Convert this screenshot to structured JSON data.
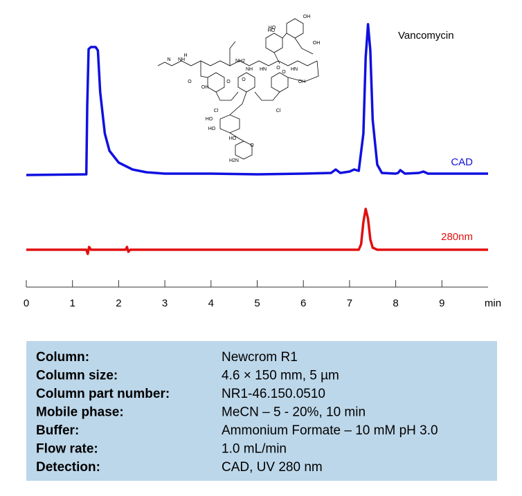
{
  "chart_data": {
    "type": "line",
    "annotations": [
      "Vancomycin"
    ],
    "structure_labels": [
      "OH",
      "HO",
      "OH",
      "HO",
      "O",
      "NH",
      "H",
      "N",
      "O",
      "OH",
      "Cl",
      "NH2",
      "O",
      "HN",
      "O",
      "Cl",
      "OH",
      "HO",
      "HO",
      "O",
      "HO",
      "H2N",
      "O",
      "NH",
      "HN"
    ],
    "x_label": "min",
    "xlim": [
      0,
      10
    ],
    "xticks": [
      0,
      1,
      2,
      3,
      4,
      5,
      6,
      7,
      8,
      9
    ],
    "ylim": [
      0,
      220
    ],
    "series": [
      {
        "name": "CAD",
        "color": "#1010e0",
        "x": [
          0,
          1.3,
          1.32,
          1.35,
          1.4,
          1.5,
          1.55,
          1.6,
          1.7,
          1.8,
          2.0,
          2.3,
          2.6,
          3.0,
          4.0,
          5.0,
          6.0,
          6.6,
          6.7,
          6.8,
          7.0,
          7.1,
          7.2,
          7.3,
          7.35,
          7.4,
          7.45,
          7.5,
          7.6,
          7.7,
          8.0,
          8.05,
          8.1,
          8.2,
          8.5,
          8.6,
          8.7,
          9.0,
          10.0
        ],
        "values": [
          0,
          1,
          100,
          182,
          185,
          185,
          180,
          120,
          60,
          35,
          18,
          8,
          4,
          2,
          2,
          1,
          2,
          3,
          8,
          3,
          5,
          8,
          6,
          60,
          170,
          218,
          180,
          80,
          15,
          3,
          2,
          3,
          7,
          2,
          3,
          5,
          2,
          2,
          2
        ]
      },
      {
        "name": "280nm",
        "color": "#e01010",
        "x": [
          0,
          1.3,
          1.33,
          1.36,
          1.4,
          2.15,
          2.18,
          2.21,
          2.25,
          7.2,
          7.25,
          7.3,
          7.35,
          7.4,
          7.45,
          7.5,
          7.6,
          10.0
        ],
        "values": [
          0,
          0,
          -6,
          4,
          0,
          0,
          4,
          -3,
          0,
          0,
          8,
          40,
          59,
          45,
          15,
          3,
          0,
          0
        ]
      }
    ]
  },
  "conditions": {
    "rows": [
      [
        "Column:",
        "Newcrom  R1"
      ],
      [
        "Column size:",
        "4.6 × 150 mm, 5 µm"
      ],
      [
        "Column part number:",
        "NR1-46.150.0510"
      ],
      [
        "Mobile phase:",
        "MeCN –  5 - 20%, 10 min"
      ],
      [
        "Buffer:",
        "Ammonium Formate – 10 mM pH 3.0"
      ],
      [
        "Flow rate:",
        "1.0 mL/min"
      ],
      [
        "Detection:",
        "CAD, UV 280 nm"
      ]
    ]
  }
}
